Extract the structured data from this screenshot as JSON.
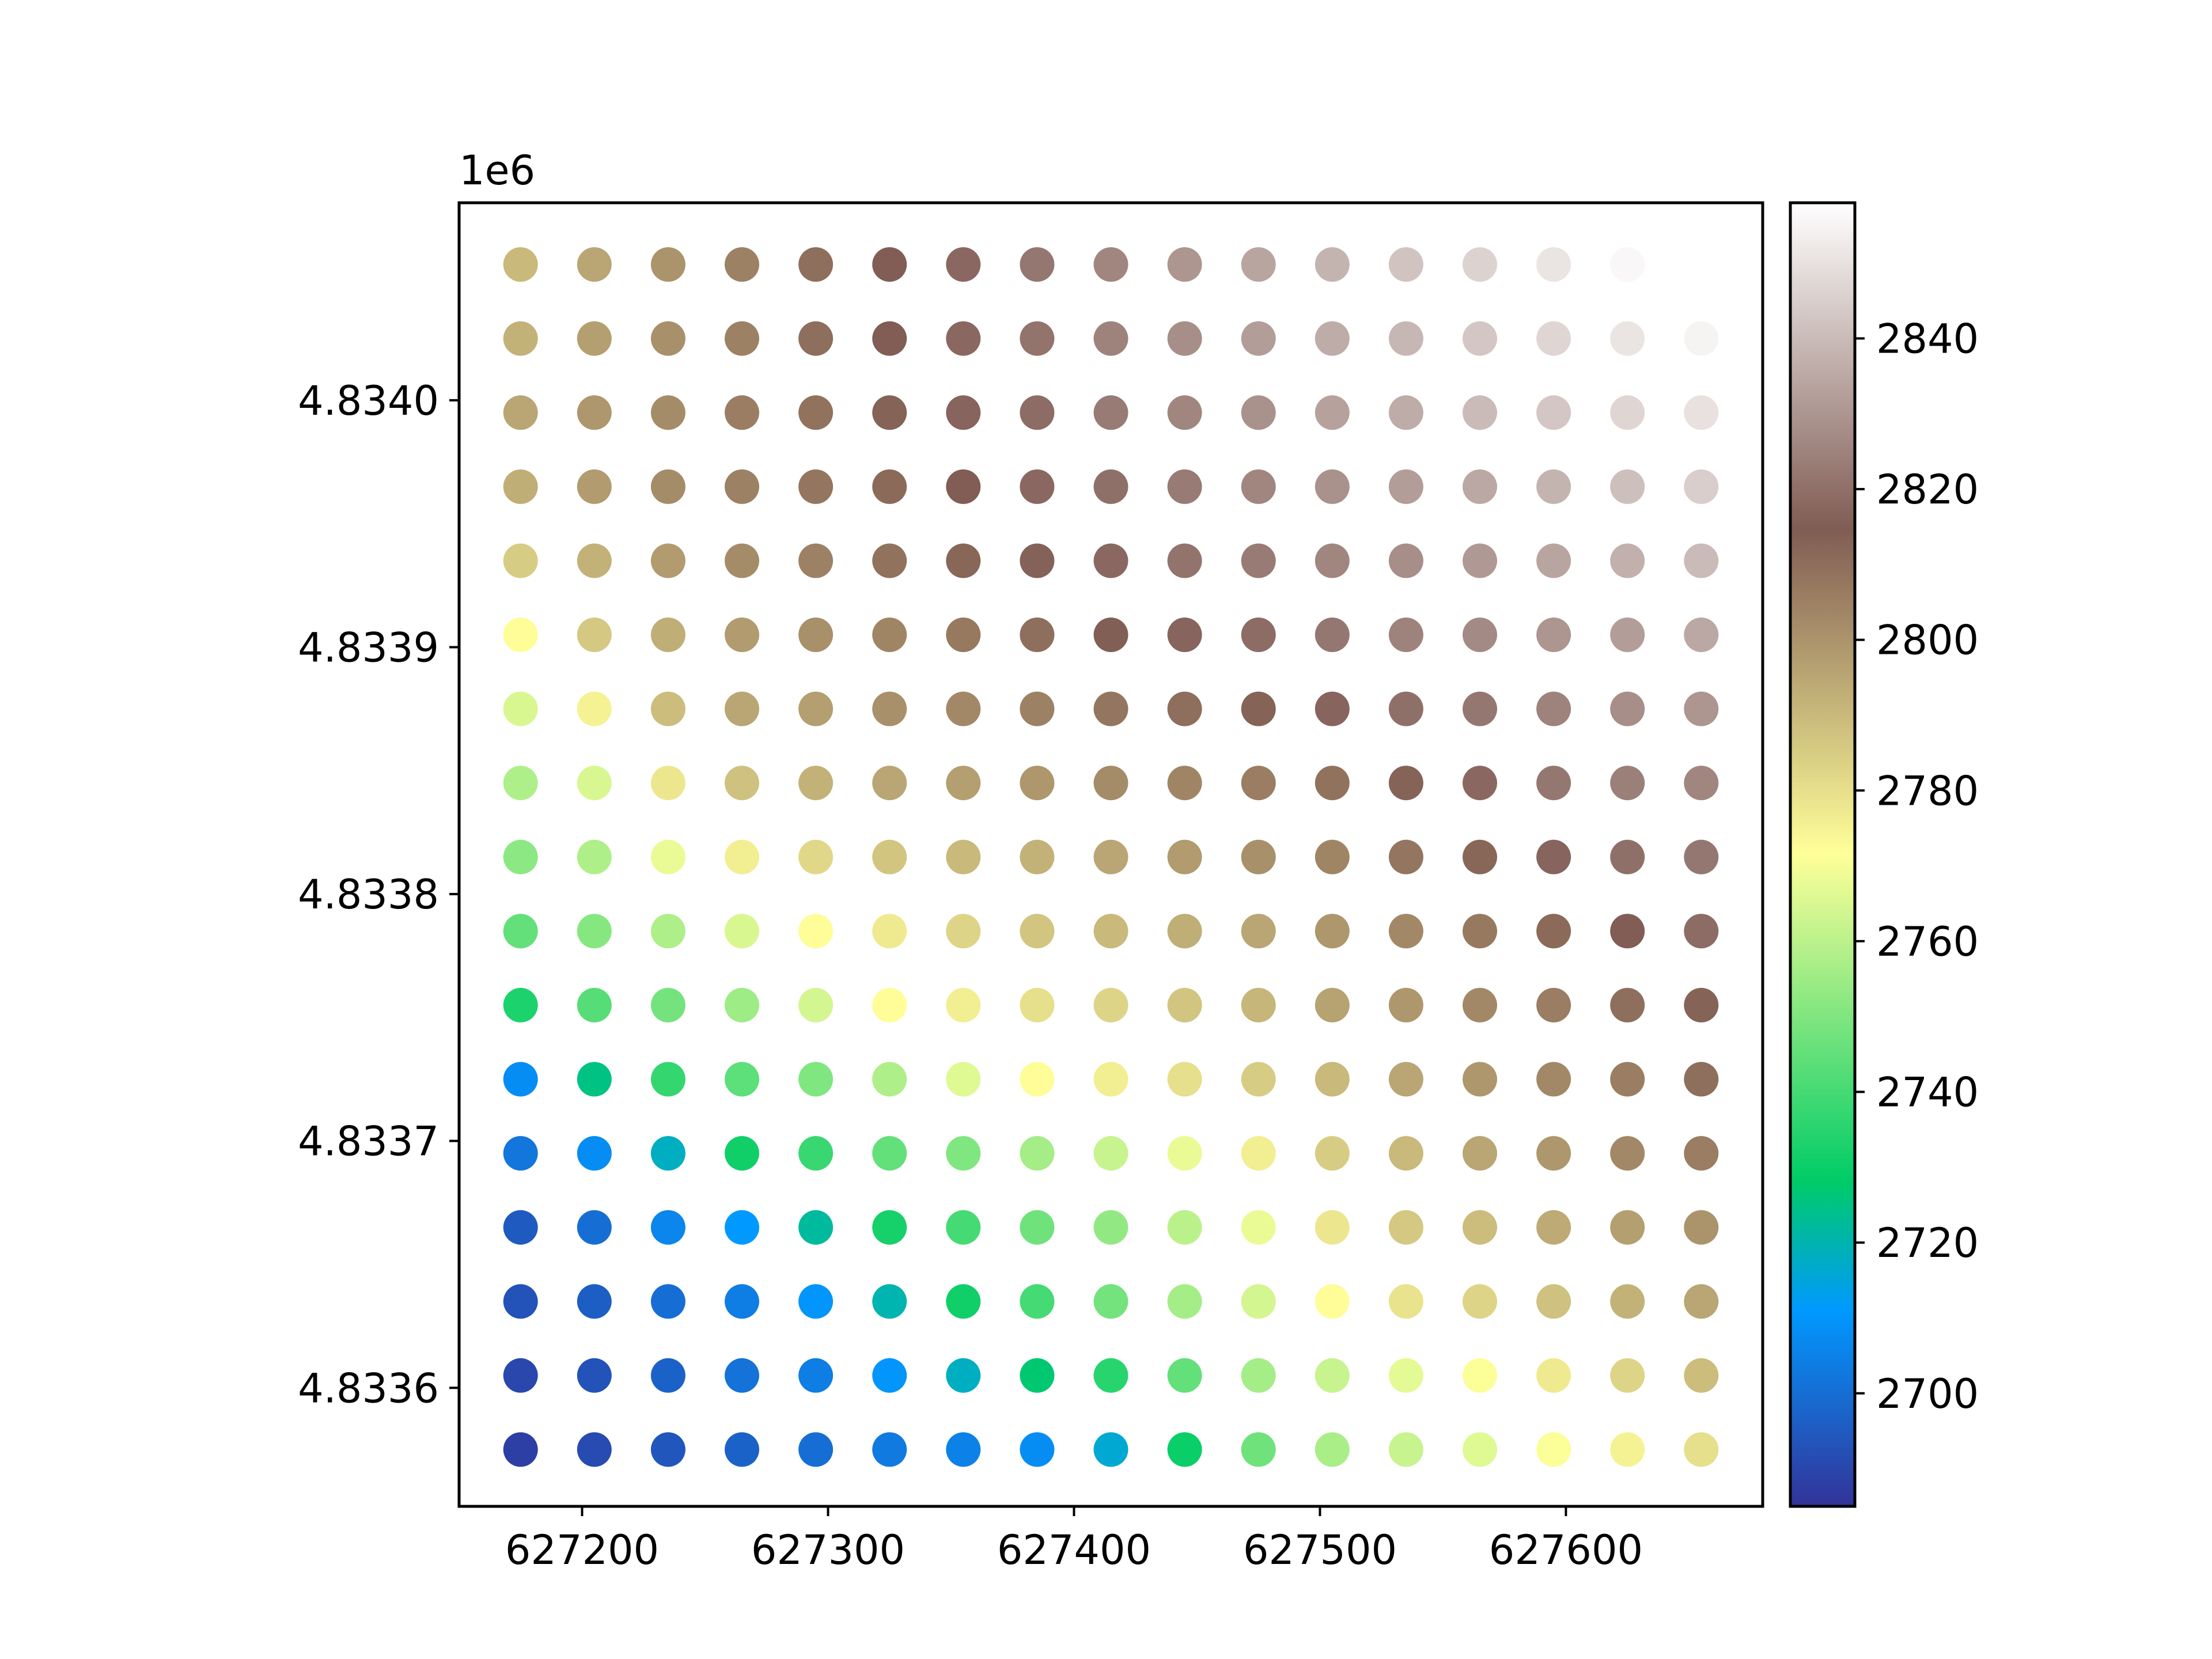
{
  "chart_data": {
    "type": "scatter",
    "title": "",
    "xlabel": "",
    "ylabel": "",
    "x_offset_label": "",
    "y_offset_label": "1e6",
    "xlim": [
      627150,
      627680
    ],
    "ylim": [
      4833552,
      4834080
    ],
    "x_ticks": [
      627200,
      627300,
      627400,
      627500,
      627600
    ],
    "x_tick_labels": [
      "627200",
      "627300",
      "627400",
      "627500",
      "627600"
    ],
    "y_ticks": [
      4833600,
      4833700,
      4833800,
      4833900,
      4834000
    ],
    "y_tick_labels": [
      "4.8336",
      "4.8337",
      "4.8338",
      "4.8339",
      "4.8340"
    ],
    "grid": false,
    "colormap": "terrain",
    "colorbar": {
      "range": [
        2685,
        2858
      ],
      "ticks": [
        2700,
        2720,
        2740,
        2760,
        2780,
        2800,
        2820,
        2840
      ],
      "tick_labels": [
        "2700",
        "2720",
        "2740",
        "2760",
        "2780",
        "2800",
        "2820",
        "2840"
      ]
    },
    "x": [
      627175,
      627205,
      627235,
      627265,
      627295,
      627325,
      627355,
      627385,
      627415,
      627445,
      627475,
      627505,
      627535,
      627565,
      627595,
      627625,
      627655
    ],
    "y": [
      4834055,
      4834025,
      4833995,
      4833965,
      4833935,
      4833905,
      4833875,
      4833845,
      4833815,
      4833785,
      4833755,
      4833725,
      4833695,
      4833665,
      4833635,
      4833605,
      4833575
    ],
    "z": [
      [
        2790,
        2795,
        2800,
        2805,
        2810,
        2815,
        2818,
        2822,
        2826,
        2830,
        2834,
        2838,
        2842,
        2846,
        2851,
        2856,
        null
      ],
      [
        2792,
        2797,
        2801,
        2805,
        2810,
        2815,
        2818,
        2821,
        2825,
        2828,
        2832,
        2836,
        2839,
        2843,
        2847,
        2851,
        2855
      ],
      [
        2795,
        2799,
        2802,
        2806,
        2809,
        2813,
        2817,
        2819,
        2823,
        2826,
        2829,
        2833,
        2836,
        2840,
        2843,
        2847,
        2850
      ],
      [
        2793,
        2798,
        2802,
        2805,
        2808,
        2811,
        2815,
        2818,
        2820,
        2823,
        2826,
        2829,
        2832,
        2835,
        2838,
        2841,
        2845
      ],
      [
        2785,
        2792,
        2798,
        2802,
        2805,
        2809,
        2812,
        2816,
        2818,
        2821,
        2823,
        2826,
        2828,
        2831,
        2834,
        2837,
        2840
      ],
      [
        2772,
        2786,
        2793,
        2798,
        2801,
        2804,
        2807,
        2810,
        2814,
        2817,
        2819,
        2822,
        2825,
        2827,
        2830,
        2832,
        2835
      ],
      [
        2765,
        2775,
        2789,
        2795,
        2797,
        2801,
        2803,
        2805,
        2808,
        2810,
        2813,
        2817,
        2820,
        2822,
        2825,
        2828,
        2830
      ],
      [
        2758,
        2765,
        2778,
        2788,
        2792,
        2795,
        2797,
        2799,
        2802,
        2804,
        2806,
        2809,
        2813,
        2818,
        2822,
        2824,
        2826
      ],
      [
        2752,
        2758,
        2768,
        2776,
        2782,
        2787,
        2790,
        2792,
        2795,
        2798,
        2801,
        2804,
        2808,
        2812,
        2817,
        2820,
        2822
      ],
      [
        2745,
        2751,
        2758,
        2765,
        2772,
        2777,
        2783,
        2787,
        2790,
        2793,
        2795,
        2799,
        2803,
        2807,
        2811,
        2815,
        2819
      ],
      [
        2733,
        2743,
        2748,
        2755,
        2764,
        2772,
        2776,
        2780,
        2783,
        2787,
        2791,
        2796,
        2799,
        2803,
        2806,
        2810,
        2813
      ],
      [
        2708,
        2725,
        2737,
        2744,
        2750,
        2758,
        2766,
        2772,
        2776,
        2780,
        2785,
        2790,
        2795,
        2799,
        2803,
        2806,
        2810
      ],
      [
        2702,
        2708,
        2718,
        2731,
        2738,
        2745,
        2750,
        2756,
        2762,
        2768,
        2776,
        2785,
        2790,
        2795,
        2799,
        2803,
        2806
      ],
      [
        2695,
        2700,
        2706,
        2711,
        2722,
        2732,
        2740,
        2747,
        2753,
        2760,
        2768,
        2778,
        2786,
        2789,
        2794,
        2797,
        2800
      ],
      [
        2693,
        2696,
        2700,
        2704,
        2710,
        2720,
        2731,
        2740,
        2748,
        2756,
        2764,
        2772,
        2779,
        2783,
        2788,
        2792,
        2795
      ],
      [
        2690,
        2693,
        2697,
        2701,
        2704,
        2710,
        2718,
        2727,
        2735,
        2745,
        2756,
        2762,
        2767,
        2771,
        2777,
        2783,
        2789
      ],
      [
        2688,
        2691,
        2694,
        2697,
        2700,
        2703,
        2705,
        2708,
        2716,
        2730,
        2747,
        2757,
        2762,
        2766,
        2771,
        2775,
        2780
      ]
    ]
  }
}
